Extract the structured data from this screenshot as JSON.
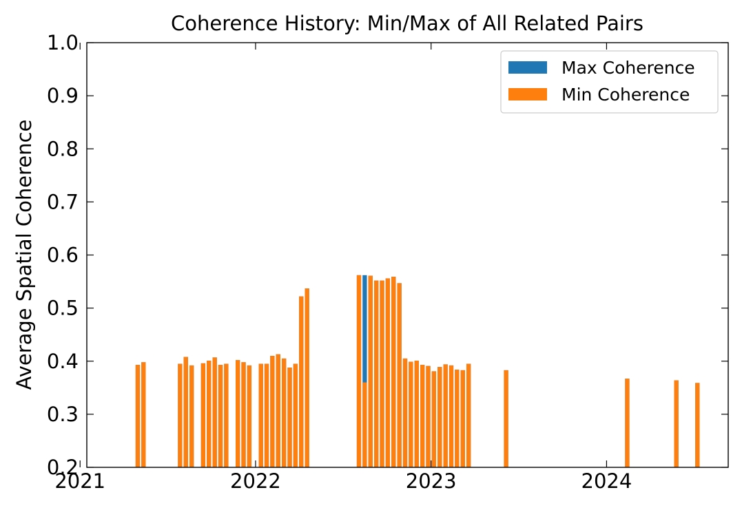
{
  "chart_data": {
    "type": "bar",
    "title": "Coherence History: Min/Max of All Related Pairs",
    "xlabel": "",
    "ylabel": "Average Spatial Coherence",
    "ylim": [
      0.2,
      1.0
    ],
    "xlim": [
      "2021-01-15",
      "2024-09-10"
    ],
    "x_ticks": [
      {
        "label": "2021",
        "date": "2021-01-01"
      },
      {
        "label": "2022",
        "date": "2022-01-01"
      },
      {
        "label": "2023",
        "date": "2023-01-01"
      },
      {
        "label": "2024",
        "date": "2024-01-01"
      }
    ],
    "y_ticks": [
      "0.2",
      "0.3",
      "0.4",
      "0.5",
      "0.6",
      "0.7",
      "0.8",
      "0.9",
      "1.0"
    ],
    "grid": false,
    "legend_position": "top-right",
    "series": [
      {
        "name": "Max Coherence",
        "color": "#1f77b4"
      },
      {
        "name": "Min Coherence",
        "color": "#ff7f0e"
      }
    ],
    "x": [
      "2021-05-01",
      "2021-05-13",
      "2021-07-28",
      "2021-08-09",
      "2021-08-21",
      "2021-09-14",
      "2021-09-26",
      "2021-10-08",
      "2021-10-20",
      "2021-11-01",
      "2021-11-25",
      "2021-12-07",
      "2021-12-19",
      "2022-01-12",
      "2022-01-24",
      "2022-02-05",
      "2022-02-17",
      "2022-03-01",
      "2022-03-13",
      "2022-03-25",
      "2022-04-06",
      "2022-04-18",
      "2022-08-04",
      "2022-08-16",
      "2022-08-28",
      "2022-09-09",
      "2022-09-21",
      "2022-10-03",
      "2022-10-15",
      "2022-10-27",
      "2022-11-08",
      "2022-11-20",
      "2022-12-02",
      "2022-12-14",
      "2022-12-26",
      "2023-01-07",
      "2023-01-19",
      "2023-01-31",
      "2023-02-12",
      "2023-02-24",
      "2023-03-08",
      "2023-03-20",
      "2023-06-06",
      "2024-02-13",
      "2024-05-25",
      "2024-07-08"
    ],
    "max_values": [
      0.393,
      0.398,
      0.395,
      0.408,
      0.392,
      0.396,
      0.401,
      0.407,
      0.393,
      0.395,
      0.402,
      0.398,
      0.392,
      0.395,
      0.395,
      0.41,
      0.413,
      0.405,
      0.388,
      0.395,
      0.522,
      0.537,
      0.562,
      0.562,
      0.561,
      0.552,
      0.552,
      0.556,
      0.559,
      0.547,
      0.405,
      0.399,
      0.401,
      0.393,
      0.391,
      0.381,
      0.389,
      0.394,
      0.392,
      0.384,
      0.383,
      0.395,
      0.383,
      0.367,
      0.364,
      0.359
    ],
    "min_values": [
      0.393,
      0.398,
      0.395,
      0.408,
      0.392,
      0.396,
      0.401,
      0.407,
      0.393,
      0.395,
      0.402,
      0.398,
      0.392,
      0.395,
      0.395,
      0.41,
      0.413,
      0.405,
      0.388,
      0.395,
      0.522,
      0.537,
      0.562,
      0.36,
      0.561,
      0.552,
      0.552,
      0.556,
      0.559,
      0.547,
      0.405,
      0.399,
      0.401,
      0.393,
      0.391,
      0.381,
      0.389,
      0.394,
      0.392,
      0.384,
      0.383,
      0.395,
      0.383,
      0.367,
      0.364,
      0.359
    ],
    "bar_width_days": 9
  }
}
